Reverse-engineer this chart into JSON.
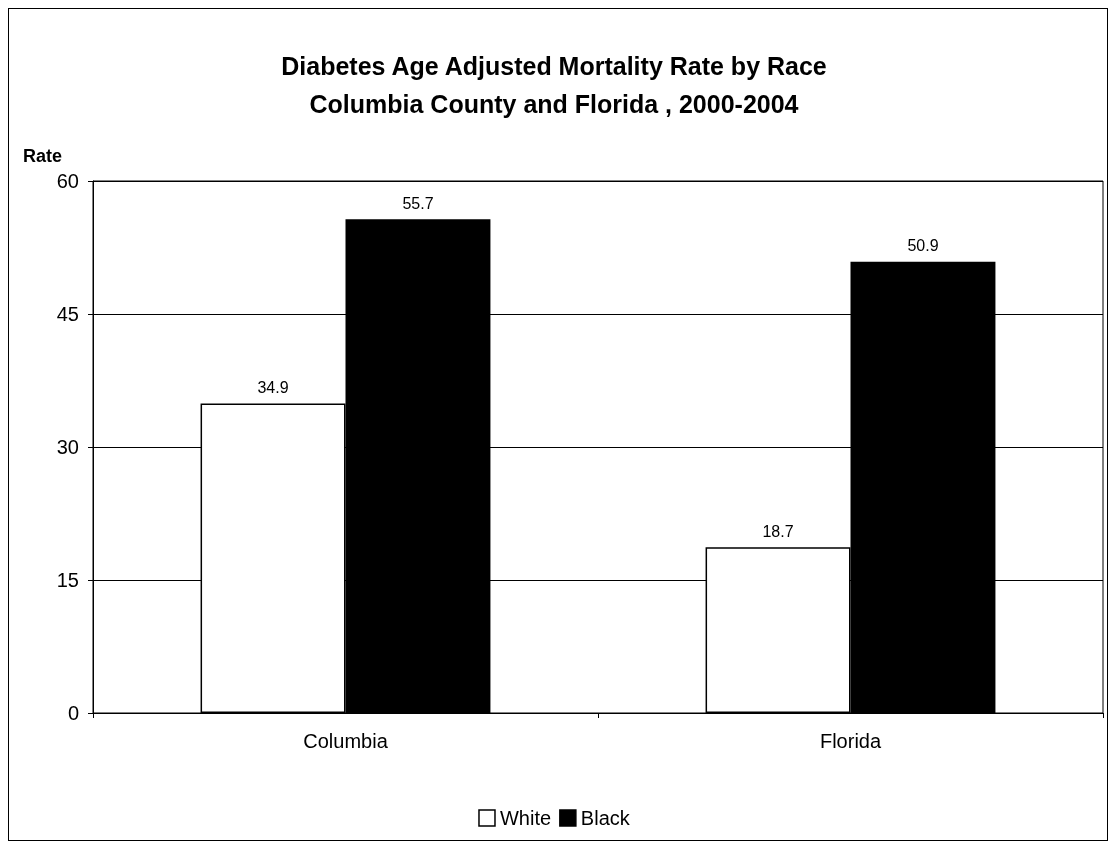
{
  "chart_data": {
    "type": "bar",
    "title": "Diabetes Age Adjusted Mortality Rate by Race\nColumbia County and Florida , 2000-2004",
    "ylabel": "Rate",
    "categories": [
      "Columbia",
      "Florida"
    ],
    "series": [
      {
        "name": "White",
        "color": "#ffffff",
        "values": [
          34.9,
          18.7
        ]
      },
      {
        "name": "Black",
        "color": "#000000",
        "values": [
          55.7,
          50.9
        ]
      }
    ],
    "ylim": [
      0,
      60
    ],
    "yticks": [
      0,
      15,
      30,
      45,
      60
    ],
    "grid": "y",
    "legend": "bottom",
    "data_labels": true
  }
}
